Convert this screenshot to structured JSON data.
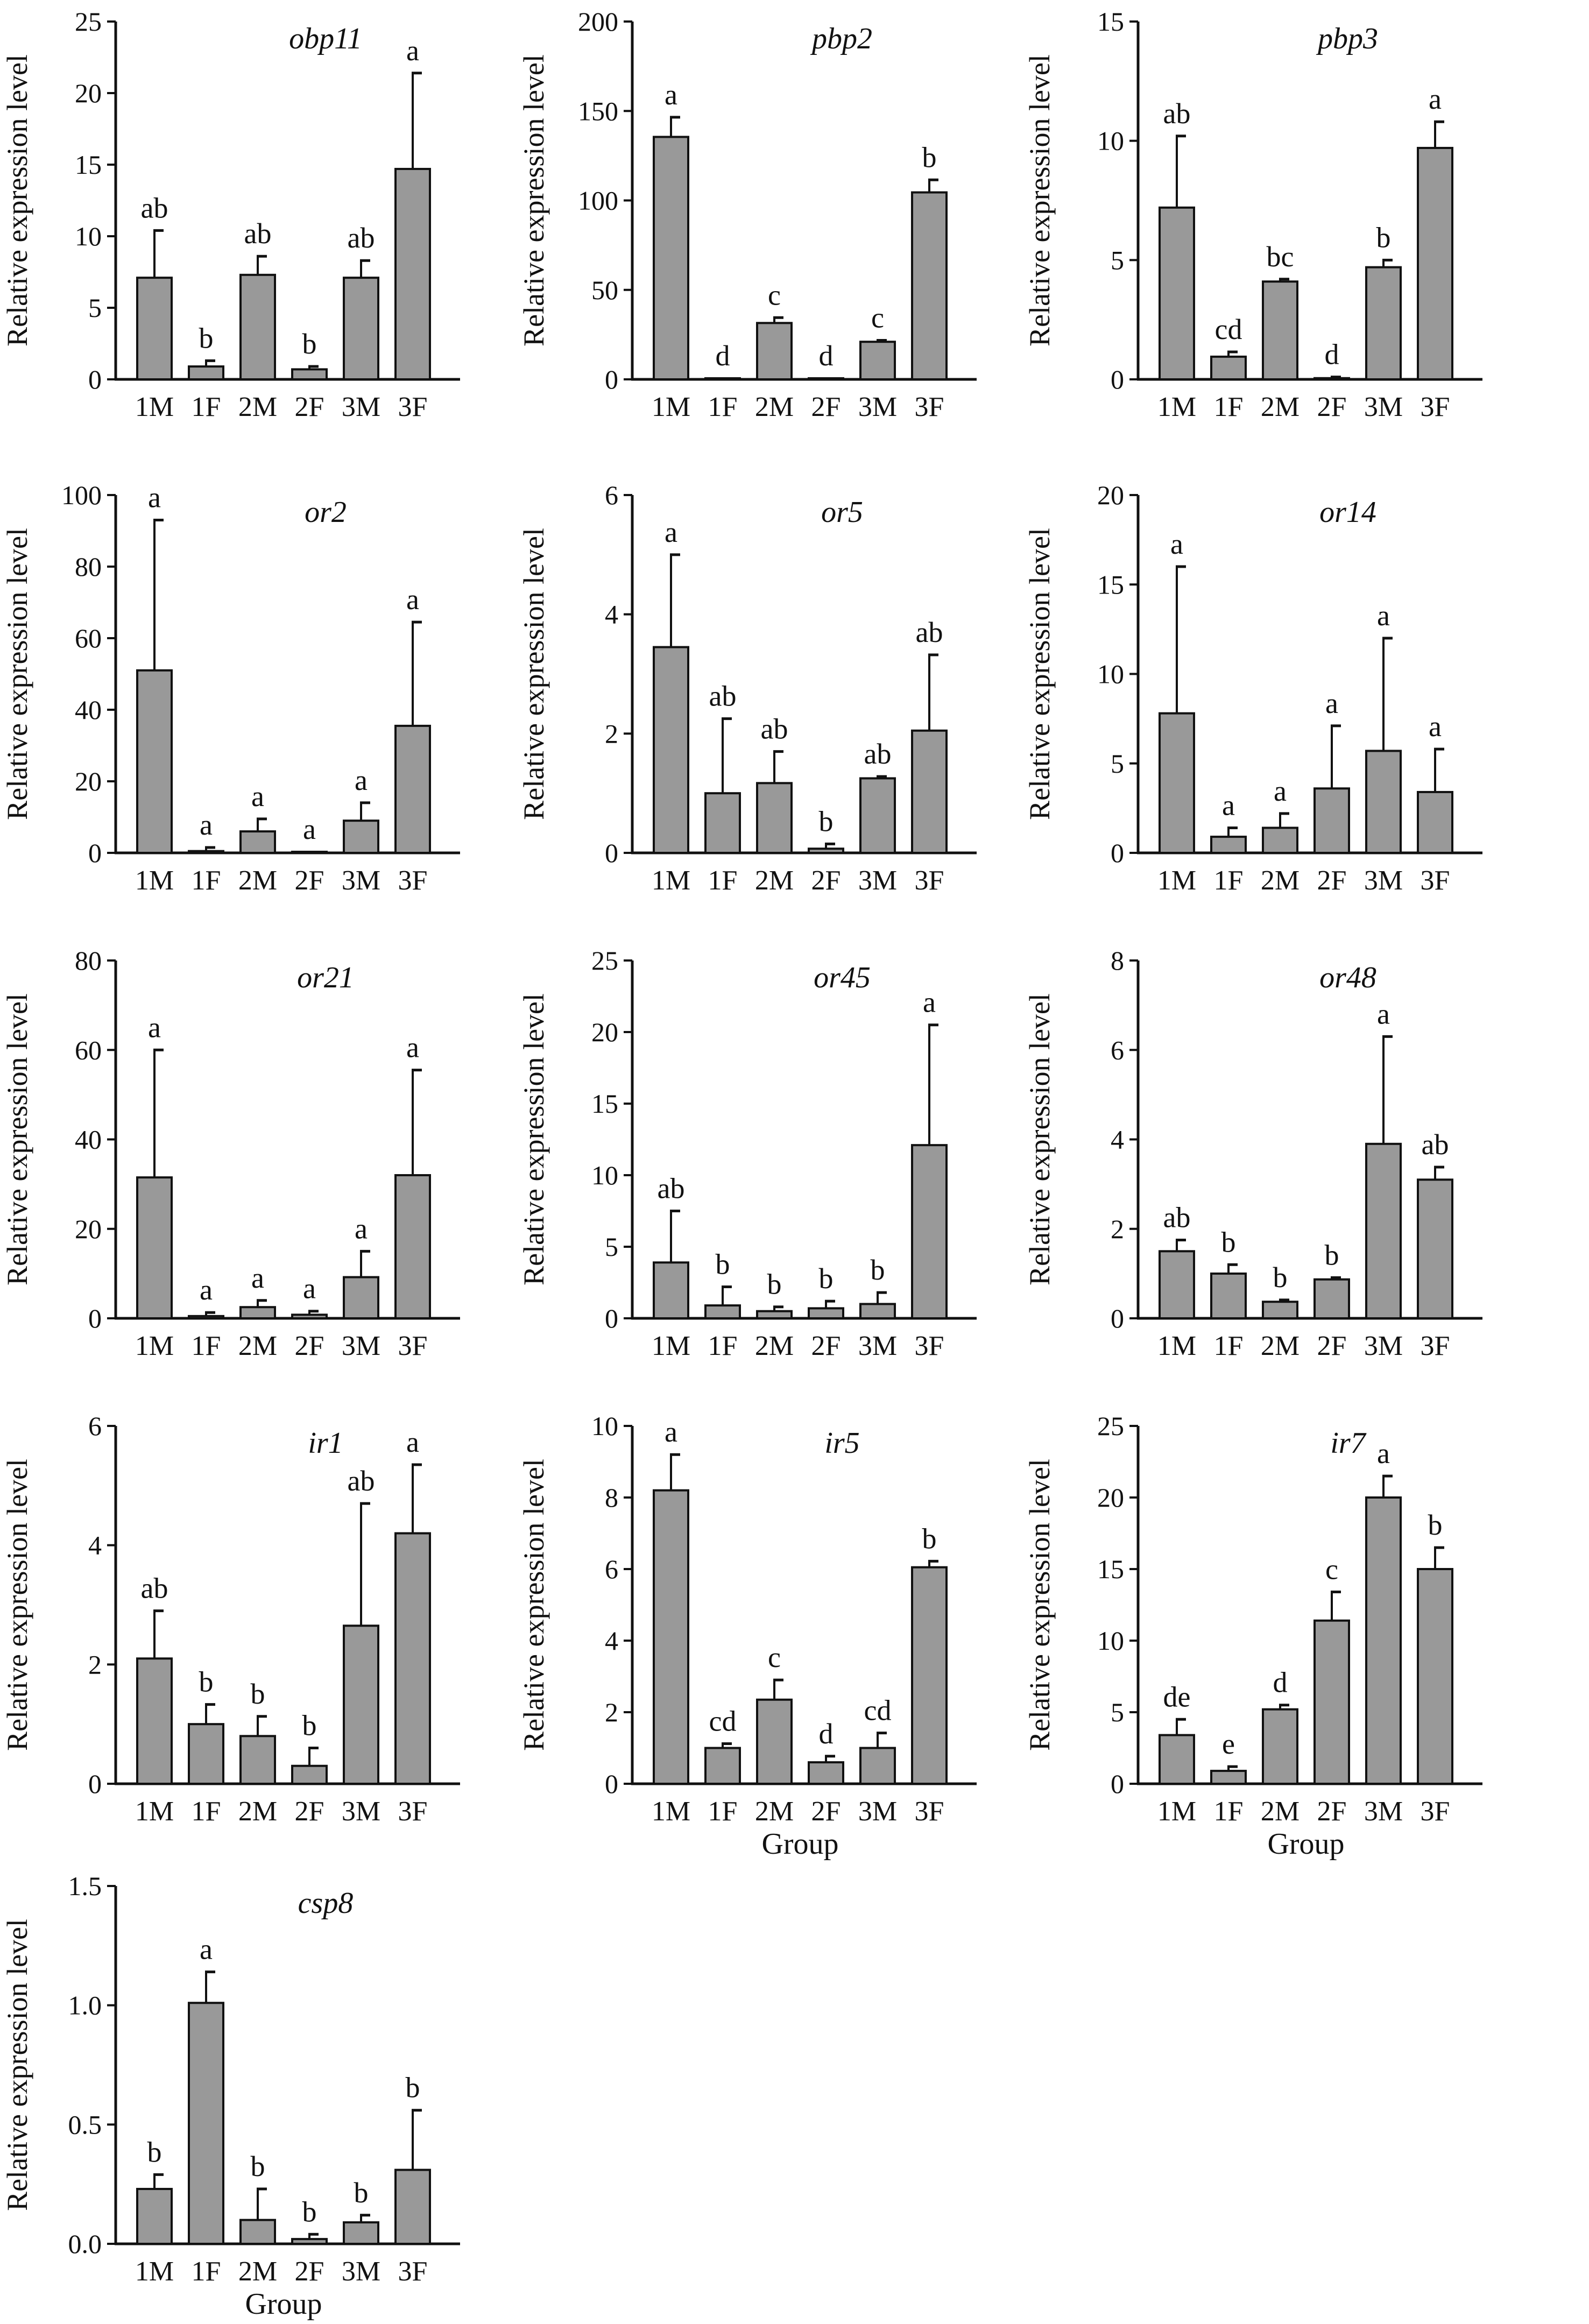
{
  "figure": {
    "y_axis_title": "Relative expression level",
    "x_axis_title": "Group",
    "categories": [
      "1M",
      "1F",
      "2M",
      "2F",
      "3M",
      "3F"
    ]
  },
  "chart_data": [
    {
      "type": "bar",
      "title": "obp11",
      "ylabel": "Relative expression level",
      "xlabel": "",
      "categories": [
        "1M",
        "1F",
        "2M",
        "2F",
        "3M",
        "3F"
      ],
      "ylim": [
        0,
        25
      ],
      "yticks": [
        "0",
        "5",
        "10",
        "15",
        "20",
        "25"
      ],
      "values": [
        7.1,
        0.9,
        7.3,
        0.7,
        7.1,
        14.7
      ],
      "errors": [
        3.3,
        0.4,
        1.3,
        0.2,
        1.2,
        6.7
      ],
      "significance": [
        "ab",
        "b",
        "ab",
        "b",
        "ab",
        "a"
      ],
      "bar_color": "#999999"
    },
    {
      "type": "bar",
      "title": "pbp2",
      "ylabel": "Relative expression level",
      "xlabel": "",
      "categories": [
        "1M",
        "1F",
        "2M",
        "2F",
        "3M",
        "3F"
      ],
      "ylim": [
        0,
        200
      ],
      "yticks": [
        "0",
        "50",
        "100",
        "150",
        "200"
      ],
      "values": [
        135.5,
        0.2,
        31.5,
        0.2,
        21.0,
        104.5
      ],
      "errors": [
        11.0,
        0,
        3.0,
        0,
        0.8,
        7.0
      ],
      "significance": [
        "a",
        "d",
        "c",
        "d",
        "c",
        "b"
      ],
      "bar_color": "#999999"
    },
    {
      "type": "bar",
      "title": "pbp3",
      "ylabel": "Relative expression level",
      "xlabel": "",
      "categories": [
        "1M",
        "1F",
        "2M",
        "2F",
        "3M",
        "3F"
      ],
      "ylim": [
        0,
        15
      ],
      "yticks": [
        "0",
        "5",
        "10",
        "15"
      ],
      "values": [
        7.2,
        0.95,
        4.1,
        0.05,
        4.7,
        9.7
      ],
      "errors": [
        3.0,
        0.2,
        0.1,
        0.05,
        0.3,
        1.1
      ],
      "significance": [
        "ab",
        "cd",
        "bc",
        "d",
        "b",
        "a"
      ],
      "bar_color": "#999999"
    },
    {
      "type": "bar",
      "title": "or2",
      "ylabel": "Relative expression level",
      "xlabel": "",
      "categories": [
        "1M",
        "1F",
        "2M",
        "2F",
        "3M",
        "3F"
      ],
      "ylim": [
        0,
        100
      ],
      "yticks": [
        "0",
        "20",
        "40",
        "60",
        "80",
        "100"
      ],
      "values": [
        51.0,
        0.5,
        6.0,
        0.1,
        9.0,
        35.5
      ],
      "errors": [
        42.0,
        1.0,
        3.5,
        0,
        5.0,
        29.0
      ],
      "significance": [
        "a",
        "a",
        "a",
        "a",
        "a",
        "a"
      ],
      "bar_color": "#999999"
    },
    {
      "type": "bar",
      "title": "or5",
      "ylabel": "Relative expression level",
      "xlabel": "",
      "categories": [
        "1M",
        "1F",
        "2M",
        "2F",
        "3M",
        "3F"
      ],
      "ylim": [
        0,
        6
      ],
      "yticks": [
        "0",
        "2",
        "4",
        "6"
      ],
      "values": [
        3.45,
        1.0,
        1.17,
        0.07,
        1.25,
        2.05
      ],
      "errors": [
        1.55,
        1.25,
        0.53,
        0.08,
        0.03,
        1.27
      ],
      "significance": [
        "a",
        "ab",
        "ab",
        "b",
        "ab",
        "ab"
      ],
      "bar_color": "#999999"
    },
    {
      "type": "bar",
      "title": "or14",
      "ylabel": "Relative expression level",
      "xlabel": "",
      "categories": [
        "1M",
        "1F",
        "2M",
        "2F",
        "3M",
        "3F"
      ],
      "ylim": [
        0,
        20
      ],
      "yticks": [
        "0",
        "5",
        "10",
        "15",
        "20"
      ],
      "values": [
        7.8,
        0.9,
        1.4,
        3.6,
        5.7,
        3.4
      ],
      "errors": [
        8.2,
        0.5,
        0.8,
        3.5,
        6.3,
        2.4
      ],
      "significance": [
        "a",
        "a",
        "a",
        "a",
        "a",
        "a"
      ],
      "bar_color": "#999999"
    },
    {
      "type": "bar",
      "title": "or21",
      "ylabel": "Relative expression level",
      "xlabel": "",
      "categories": [
        "1M",
        "1F",
        "2M",
        "2F",
        "3M",
        "3F"
      ],
      "ylim": [
        0,
        80
      ],
      "yticks": [
        "0",
        "20",
        "40",
        "60",
        "80"
      ],
      "values": [
        31.5,
        0.5,
        2.5,
        0.8,
        9.2,
        32.0
      ],
      "errors": [
        28.5,
        0.8,
        1.5,
        0.8,
        5.8,
        23.5
      ],
      "significance": [
        "a",
        "a",
        "a",
        "a",
        "a",
        "a"
      ],
      "bar_color": "#999999"
    },
    {
      "type": "bar",
      "title": "or45",
      "ylabel": "Relative expression level",
      "xlabel": "",
      "categories": [
        "1M",
        "1F",
        "2M",
        "2F",
        "3M",
        "3F"
      ],
      "ylim": [
        0,
        25
      ],
      "yticks": [
        "0",
        "5",
        "10",
        "15",
        "20",
        "25"
      ],
      "values": [
        3.9,
        0.9,
        0.5,
        0.7,
        1.0,
        12.1
      ],
      "errors": [
        3.6,
        1.3,
        0.3,
        0.5,
        0.8,
        8.4
      ],
      "significance": [
        "ab",
        "b",
        "b",
        "b",
        "b",
        "a"
      ],
      "bar_color": "#999999"
    },
    {
      "type": "bar",
      "title": "or48",
      "ylabel": "Relative expression level",
      "xlabel": "",
      "categories": [
        "1M",
        "1F",
        "2M",
        "2F",
        "3M",
        "3F"
      ],
      "ylim": [
        0,
        8
      ],
      "yticks": [
        "0",
        "2",
        "4",
        "6",
        "8"
      ],
      "values": [
        1.5,
        1.0,
        0.37,
        0.87,
        3.9,
        3.1
      ],
      "errors": [
        0.25,
        0.2,
        0.04,
        0.04,
        2.4,
        0.28
      ],
      "significance": [
        "ab",
        "b",
        "b",
        "b",
        "a",
        "ab"
      ],
      "bar_color": "#999999"
    },
    {
      "type": "bar",
      "title": "ir1",
      "ylabel": "Relative expression level",
      "xlabel": "",
      "categories": [
        "1M",
        "1F",
        "2M",
        "2F",
        "3M",
        "3F"
      ],
      "ylim": [
        0,
        6
      ],
      "yticks": [
        "0",
        "2",
        "4",
        "6"
      ],
      "values": [
        2.1,
        1.0,
        0.8,
        0.3,
        2.65,
        4.2
      ],
      "errors": [
        0.8,
        0.33,
        0.33,
        0.3,
        2.05,
        1.15
      ],
      "significance": [
        "ab",
        "b",
        "b",
        "b",
        "ab",
        "a"
      ],
      "bar_color": "#999999"
    },
    {
      "type": "bar",
      "title": "ir5",
      "ylabel": "Relative expression level",
      "xlabel": "Group",
      "categories": [
        "1M",
        "1F",
        "2M",
        "2F",
        "3M",
        "3F"
      ],
      "ylim": [
        0,
        10
      ],
      "yticks": [
        "0",
        "2",
        "4",
        "6",
        "8",
        "10"
      ],
      "values": [
        8.2,
        1.0,
        2.35,
        0.6,
        1.0,
        6.05
      ],
      "errors": [
        1.0,
        0.12,
        0.55,
        0.17,
        0.42,
        0.17
      ],
      "significance": [
        "a",
        "cd",
        "c",
        "d",
        "cd",
        "b"
      ],
      "bar_color": "#999999"
    },
    {
      "type": "bar",
      "title": "ir7",
      "ylabel": "Relative expression level",
      "xlabel": "Group",
      "categories": [
        "1M",
        "1F",
        "2M",
        "2F",
        "3M",
        "3F"
      ],
      "ylim": [
        0,
        25
      ],
      "yticks": [
        "0",
        "5",
        "10",
        "15",
        "20",
        "25"
      ],
      "values": [
        3.4,
        0.9,
        5.2,
        11.4,
        20.0,
        15.0
      ],
      "errors": [
        1.1,
        0.3,
        0.3,
        2.0,
        1.5,
        1.5
      ],
      "significance": [
        "de",
        "e",
        "d",
        "c",
        "a",
        "b"
      ],
      "bar_color": "#999999"
    },
    {
      "type": "bar",
      "title": "csp8",
      "ylabel": "Relative expression level",
      "xlabel": "Group",
      "categories": [
        "1M",
        "1F",
        "2M",
        "2F",
        "3M",
        "3F"
      ],
      "ylim": [
        0,
        1.5
      ],
      "yticks": [
        "0.0",
        "0.5",
        "1.0",
        "1.5"
      ],
      "values": [
        0.23,
        1.01,
        0.1,
        0.02,
        0.09,
        0.31
      ],
      "errors": [
        0.06,
        0.13,
        0.13,
        0.02,
        0.03,
        0.25
      ],
      "significance": [
        "b",
        "a",
        "b",
        "b",
        "b",
        "b"
      ],
      "bar_color": "#999999"
    }
  ]
}
